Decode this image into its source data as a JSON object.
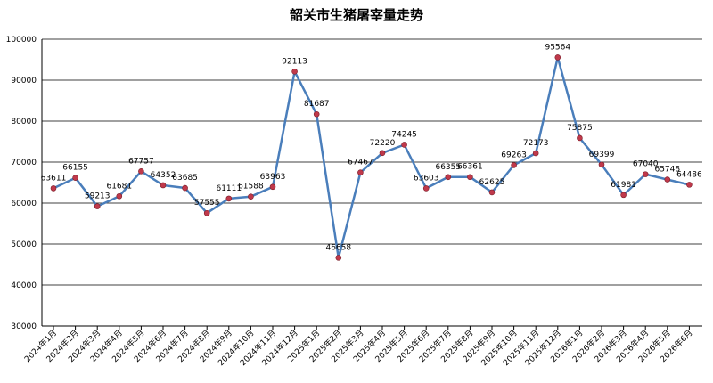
{
  "chart_data": {
    "type": "line",
    "title": "韶关市生猪屠宰量走势",
    "xlabel": "",
    "ylabel": "",
    "ylim": [
      30000,
      100000
    ],
    "yticks": [
      30000,
      40000,
      50000,
      60000,
      70000,
      80000,
      90000,
      100000
    ],
    "grid": true,
    "legend": "none",
    "line_color": "#4a7ebb",
    "marker_color": "#c0394b",
    "categories": [
      "2024年1月",
      "2024年2月",
      "2024年3月",
      "2024年4月",
      "2024年5月",
      "2024年6月",
      "2024年7月",
      "2024年8月",
      "2024年9月",
      "2024年10月",
      "2024年11月",
      "2024年12月",
      "2025年1月",
      "2025年2月",
      "2025年3月",
      "2025年4月",
      "2025年5月",
      "2025年6月",
      "2025年7月",
      "2025年8月",
      "2025年9月",
      "2025年10月",
      "2025年11月",
      "2025年12月",
      "2026年1月",
      "2026年2月",
      "2026年3月",
      "2026年4月",
      "2026年5月",
      "2026年6月"
    ],
    "values": [
      63611,
      66155,
      59213,
      61681,
      67757,
      64352,
      63685,
      57555,
      61111,
      61588,
      63963,
      92113,
      81687,
      46658,
      67467,
      72220,
      74245,
      63603,
      66355,
      66361,
      62625,
      69263,
      72173,
      95564,
      75875,
      69399,
      61981,
      67040,
      65748,
      64486
    ]
  }
}
